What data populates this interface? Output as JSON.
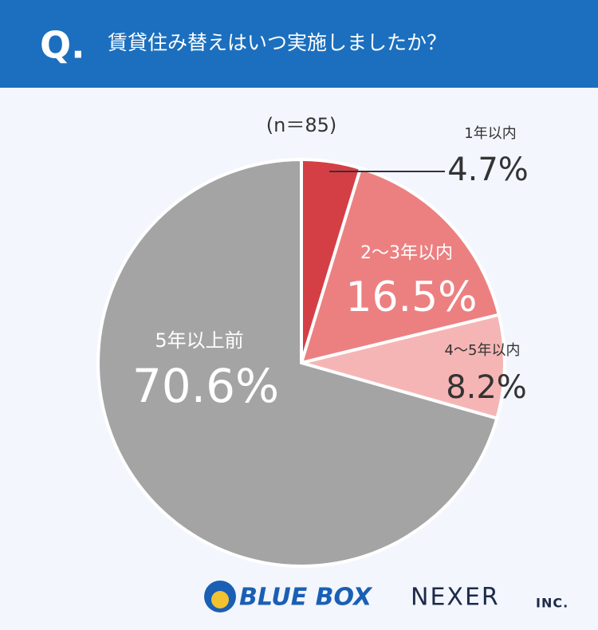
{
  "chart_data": {
    "type": "pie",
    "question_marker": "Q.",
    "title": "賃貸住み替えはいつ実施しましたか？",
    "subtitle": "(n＝85)",
    "categories": [
      "1年以内",
      "2〜3年以内",
      "4〜5年以内",
      "5年以上前"
    ],
    "values": [
      4.7,
      16.5,
      8.2,
      70.6
    ],
    "value_labels": [
      "4.7%",
      "16.5%",
      "8.2%",
      "70.6%"
    ],
    "colors": [
      "#d43f45",
      "#ec8081",
      "#f6b5b5",
      "#a4a4a4"
    ]
  },
  "footer": {
    "brand": "BLUE BOX",
    "company": "NEXER",
    "company_suffix": "INC."
  }
}
